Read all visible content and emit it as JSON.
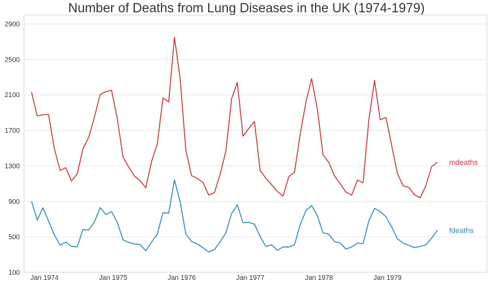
{
  "chart_data": {
    "type": "line",
    "title": "Number of Deaths from Lung Diseases in the UK (1974-1979)",
    "xlabel": "",
    "ylabel": "",
    "ylim": [
      100,
      3000
    ],
    "y_ticks": [
      100,
      500,
      900,
      1300,
      1700,
      2100,
      2500,
      2900
    ],
    "x_tick_labels": [
      "Jan 1974",
      "Jan 1975",
      "Jan 1976",
      "Jan 1977",
      "Jan 1978",
      "Jan 1979"
    ],
    "grid": "horizontal",
    "start": "Jan 1974",
    "series": [
      {
        "name": "mdeaths",
        "color": "#c0393b",
        "values": [
          2134,
          1863,
          1877,
          1877,
          1492,
          1249,
          1280,
          1131,
          1209,
          1492,
          1621,
          1846,
          2103,
          2137,
          2153,
          1833,
          1403,
          1288,
          1186,
          1133,
          1053,
          1347,
          1545,
          2066,
          2020,
          2750,
          2283,
          1479,
          1189,
          1160,
          1113,
          970,
          999,
          1208,
          1467,
          2059,
          2240,
          1634,
          1722,
          1801,
          1246,
          1162,
          1087,
          1013,
          959,
          1179,
          1229,
          1655,
          2019,
          2284,
          1942,
          1423,
          1340,
          1187,
          1098,
          1004,
          970,
          1140,
          1110,
          1812,
          2263,
          1820,
          1846,
          1531,
          1215,
          1075,
          1056,
          975,
          940,
          1081,
          1294,
          1341
        ]
      },
      {
        "name": "fdeaths",
        "color": "#2e8ab5",
        "values": [
          901,
          689,
          827,
          677,
          522,
          406,
          441,
          393,
          387,
          582,
          578,
          666,
          830,
          752,
          785,
          664,
          467,
          438,
          421,
          412,
          343,
          440,
          531,
          771,
          767,
          1141,
          896,
          532,
          447,
          420,
          376,
          330,
          357,
          445,
          546,
          764,
          862,
          660,
          663,
          643,
          502,
          392,
          411,
          348,
          387,
          385,
          411,
          638,
          796,
          853,
          737,
          546,
          530,
          446,
          431,
          362,
          387,
          430,
          425,
          679,
          821,
          785,
          727,
          612,
          478,
          429,
          405,
          379,
          393,
          411,
          487,
          574
        ]
      }
    ]
  }
}
